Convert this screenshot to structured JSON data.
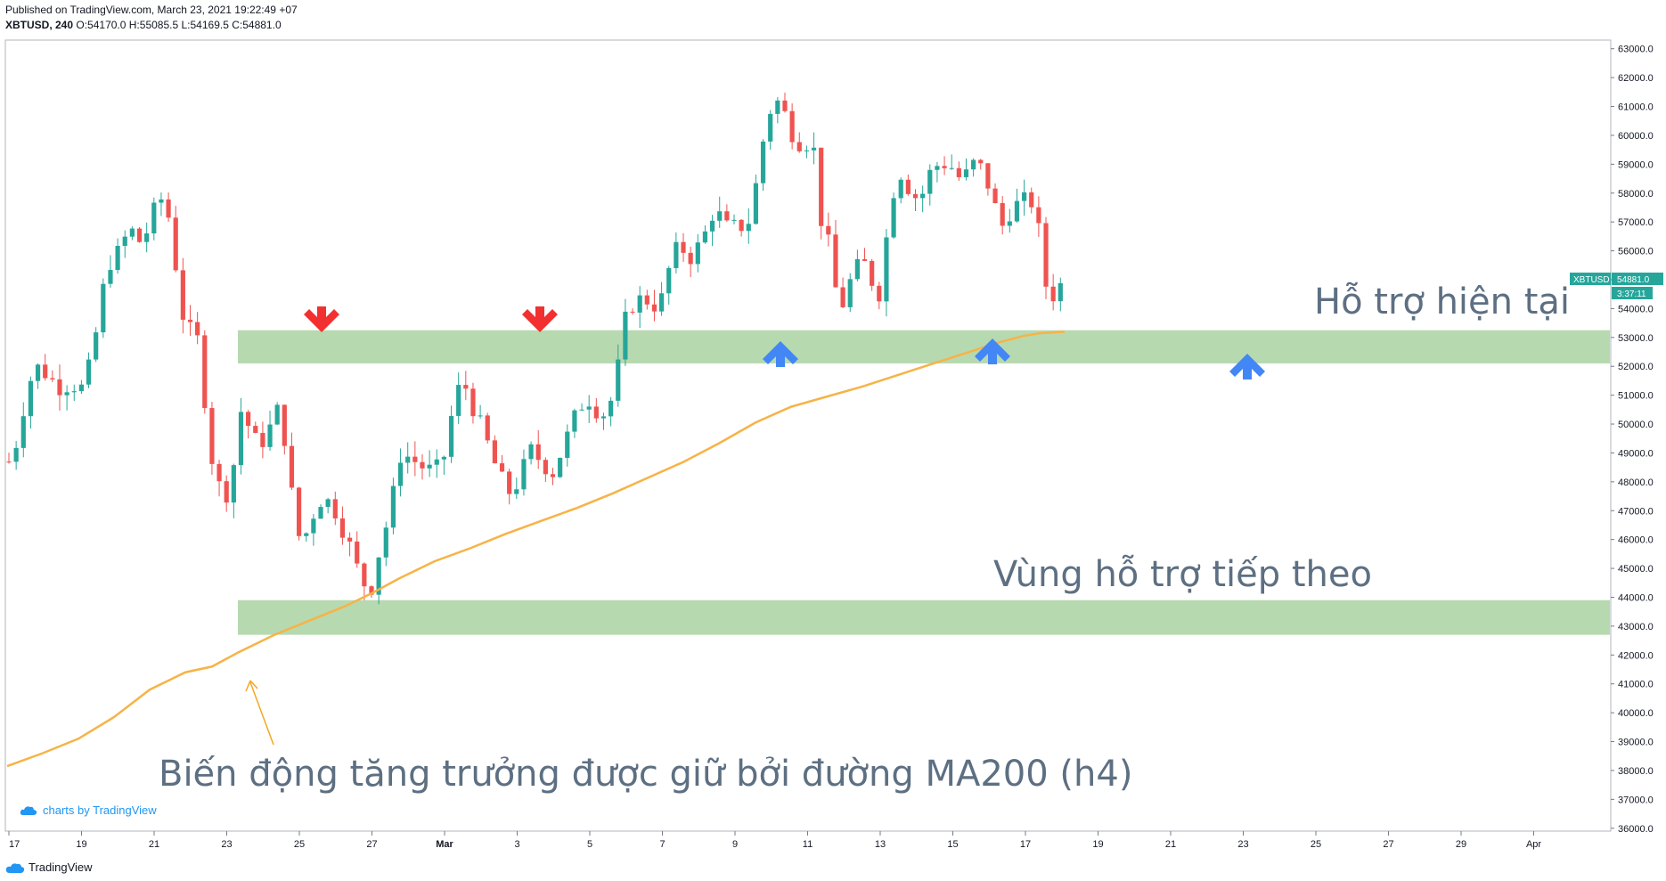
{
  "header": {
    "published": "Published on TradingView.com, March 23, 2021 19:22:49 +07",
    "symbol_line": "XBTUSD, 240",
    "o": "O:54170.0",
    "h": "H:55085.5",
    "l": "L:54169.5",
    "c": "C:54881.0"
  },
  "price_label": {
    "symbol": "XBTUSD",
    "value": "54881.0",
    "countdown": "3:37:11"
  },
  "watermark": "charts by TradingView",
  "footer_brand": "TradingView",
  "colors": {
    "up": "#26a69a",
    "down": "#ef5350",
    "ma": "#f7b346",
    "zone": "#b7d9b0",
    "arrow_down": "#f23030",
    "arrow_up": "#4287f5",
    "annotation": "#5d6f82"
  },
  "chart_data": {
    "type": "candlestick",
    "y_ticks": [
      "63000.0",
      "62000.0",
      "61000.0",
      "60000.0",
      "59000.0",
      "58000.0",
      "57000.0",
      "56000.0",
      "55000.0",
      "54000.0",
      "53000.0",
      "52000.0",
      "51000.0",
      "50000.0",
      "49000.0",
      "48000.0",
      "47000.0",
      "46000.0",
      "45000.0",
      "44000.0",
      "43000.0",
      "42000.0",
      "41000.0",
      "40000.0",
      "39000.0",
      "38000.0",
      "37000.0",
      "36000.0"
    ],
    "x_ticks": [
      "17",
      "19",
      "21",
      "23",
      "25",
      "27",
      "Mar",
      "3",
      "5",
      "7",
      "9",
      "11",
      "13",
      "15",
      "17",
      "19",
      "21",
      "23",
      "25",
      "27",
      "29",
      "Apr"
    ],
    "ylim": [
      35900,
      63300
    ],
    "ma_label": "MA200",
    "ma200": [
      [
        0,
        38150
      ],
      [
        40,
        38600
      ],
      [
        80,
        39100
      ],
      [
        120,
        39850
      ],
      [
        160,
        40800
      ],
      [
        200,
        41400
      ],
      [
        230,
        41600
      ],
      [
        260,
        42100
      ],
      [
        300,
        42700
      ],
      [
        340,
        43200
      ],
      [
        380,
        43700
      ],
      [
        410,
        44150
      ],
      [
        440,
        44650
      ],
      [
        480,
        45250
      ],
      [
        520,
        45700
      ],
      [
        560,
        46200
      ],
      [
        600,
        46650
      ],
      [
        640,
        47100
      ],
      [
        680,
        47600
      ],
      [
        720,
        48150
      ],
      [
        760,
        48700
      ],
      [
        800,
        49350
      ],
      [
        840,
        50050
      ],
      [
        880,
        50600
      ],
      [
        920,
        50950
      ],
      [
        960,
        51300
      ],
      [
        1000,
        51700
      ],
      [
        1040,
        52100
      ],
      [
        1080,
        52500
      ],
      [
        1110,
        52800
      ],
      [
        1140,
        53050
      ],
      [
        1160,
        53150
      ],
      [
        1187,
        53200
      ]
    ],
    "support_zones": [
      {
        "label": "Hỗ trợ hiện tại",
        "from": 52100,
        "to": 53250
      },
      {
        "label": "Vùng hỗ trợ tiếp theo",
        "from": 42700,
        "to": 43900
      }
    ],
    "annotations": [
      {
        "text": "Hỗ trợ hiện tại"
      },
      {
        "text": "Vùng hỗ trợ tiếp theo"
      },
      {
        "text": "Biến động tăng trưởng được giữ bởi đường MA200 (h4)"
      }
    ],
    "close_path": [
      [
        0,
        48700
      ],
      [
        10,
        49500
      ],
      [
        20,
        51200
      ],
      [
        30,
        52000
      ],
      [
        40,
        51800
      ],
      [
        55,
        51300
      ],
      [
        70,
        51400
      ],
      [
        85,
        51200
      ],
      [
        100,
        53500
      ],
      [
        110,
        55500
      ],
      [
        125,
        56000
      ],
      [
        135,
        56800
      ],
      [
        150,
        56200
      ],
      [
        160,
        57200
      ],
      [
        175,
        58000
      ],
      [
        185,
        56000
      ],
      [
        195,
        53800
      ],
      [
        205,
        53100
      ],
      [
        215,
        52800
      ],
      [
        222,
        50000
      ],
      [
        230,
        48400
      ],
      [
        240,
        47500
      ],
      [
        250,
        47800
      ],
      [
        258,
        50600
      ],
      [
        268,
        50000
      ],
      [
        280,
        49200
      ],
      [
        292,
        49800
      ],
      [
        305,
        50700
      ],
      [
        315,
        48000
      ],
      [
        328,
        45700
      ],
      [
        340,
        46800
      ],
      [
        352,
        47500
      ],
      [
        365,
        47100
      ],
      [
        380,
        46000
      ],
      [
        392,
        44900
      ],
      [
        405,
        44100
      ],
      [
        415,
        45500
      ],
      [
        428,
        47000
      ],
      [
        440,
        49000
      ],
      [
        452,
        48800
      ],
      [
        465,
        48500
      ],
      [
        478,
        48300
      ],
      [
        490,
        49000
      ],
      [
        500,
        50900
      ],
      [
        510,
        51500
      ],
      [
        522,
        50500
      ],
      [
        535,
        49500
      ],
      [
        548,
        48400
      ],
      [
        560,
        47600
      ],
      [
        572,
        48000
      ],
      [
        585,
        49100
      ],
      [
        598,
        48700
      ],
      [
        610,
        48300
      ],
      [
        622,
        49200
      ],
      [
        635,
        50200
      ],
      [
        648,
        51000
      ],
      [
        660,
        50500
      ],
      [
        672,
        50300
      ],
      [
        684,
        52000
      ],
      [
        694,
        54000
      ],
      [
        706,
        54300
      ],
      [
        718,
        54300
      ],
      [
        730,
        54000
      ],
      [
        742,
        55500
      ],
      [
        752,
        56200
      ],
      [
        765,
        55800
      ],
      [
        778,
        56300
      ],
      [
        792,
        57500
      ],
      [
        805,
        56800
      ],
      [
        818,
        56800
      ],
      [
        830,
        57000
      ],
      [
        840,
        58500
      ],
      [
        850,
        60500
      ],
      [
        860,
        61300
      ],
      [
        870,
        60800
      ],
      [
        882,
        59900
      ],
      [
        892,
        59700
      ],
      [
        902,
        59900
      ],
      [
        912,
        57000
      ],
      [
        922,
        56000
      ],
      [
        932,
        53800
      ],
      [
        945,
        55000
      ],
      [
        958,
        55700
      ],
      [
        968,
        55000
      ],
      [
        978,
        54500
      ],
      [
        988,
        57300
      ],
      [
        998,
        58900
      ],
      [
        1010,
        58200
      ],
      [
        1022,
        57700
      ],
      [
        1034,
        58700
      ],
      [
        1046,
        59100
      ],
      [
        1058,
        58900
      ],
      [
        1070,
        58400
      ],
      [
        1082,
        59000
      ],
      [
        1094,
        58800
      ],
      [
        1104,
        57800
      ],
      [
        1114,
        56800
      ],
      [
        1124,
        57400
      ],
      [
        1136,
        57700
      ],
      [
        1148,
        57700
      ],
      [
        1158,
        56400
      ],
      [
        1166,
        54300
      ],
      [
        1176,
        54600
      ],
      [
        1186,
        54881
      ]
    ]
  }
}
